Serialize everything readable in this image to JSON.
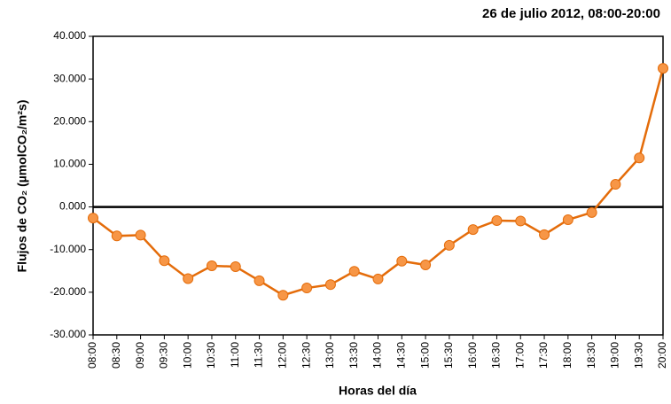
{
  "chart_data": {
    "type": "line",
    "title": "26 de julio 2012, 08:00-20:00",
    "x_label": "Horas del día",
    "y_label": "Flujos de CO₂ (µmolCO₂/m²s)",
    "categories": [
      "08:00",
      "08:30",
      "09:00",
      "09:30",
      "10:00",
      "10:30",
      "11:00",
      "11:30",
      "12:00",
      "12:30",
      "13:00",
      "13:30",
      "14:00",
      "14:30",
      "15:00",
      "15:30",
      "16:00",
      "16:30",
      "17:00",
      "17:30",
      "18:00",
      "18:30",
      "19:00",
      "19:30",
      "20:00"
    ],
    "values": [
      -2600,
      -6800,
      -6600,
      -12600,
      -16800,
      -13800,
      -14000,
      -17300,
      -20700,
      -19000,
      -18200,
      -15100,
      -16900,
      -12700,
      -13600,
      -9000,
      -5300,
      -3200,
      -3300,
      -6500,
      -3000,
      -1300,
      5300,
      11500,
      32500
    ],
    "color": "#e46c0a",
    "marker_color": "#f79646",
    "ylim": [
      -30000,
      40000
    ],
    "yticks": [
      {
        "value": -30000,
        "label": "-30.000"
      },
      {
        "value": -20000,
        "label": "-20.000"
      },
      {
        "value": -10000,
        "label": "-10.000"
      },
      {
        "value": 0,
        "label": "0.000"
      },
      {
        "value": 10000,
        "label": "10.000"
      },
      {
        "value": 20000,
        "label": "20.000"
      },
      {
        "value": 30000,
        "label": "30.000"
      },
      {
        "value": 40000,
        "label": "40.000"
      }
    ],
    "grid": false
  }
}
